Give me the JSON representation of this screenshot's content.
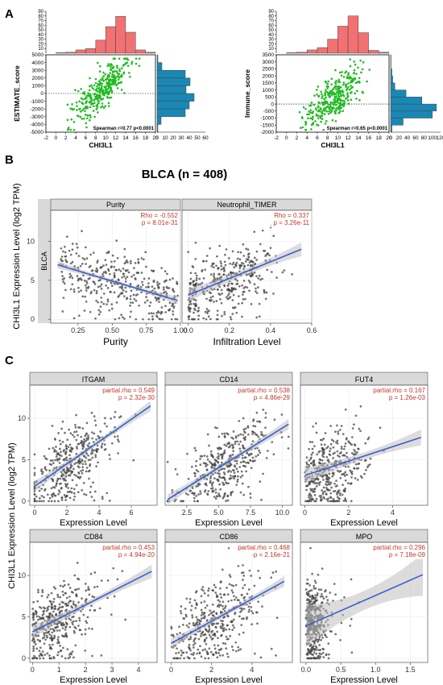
{
  "panel_labels": {
    "a": "A",
    "b": "B",
    "c": "C"
  },
  "colors": {
    "hist_top": "#f27173",
    "hist_side": "#1a87b5",
    "scatter_a": "#22bb22",
    "points": "#444444",
    "fit_line": "#3a5fcd",
    "band": "#bfbfbf",
    "stat_text": "#c0392b",
    "strip_bg": "#d9d9d9",
    "grid": "#ebebeb"
  },
  "panel_b": {
    "title": "BLCA (n = 408)",
    "ylabel": "CHI3L1 Expression Level (log2 TPM)",
    "row_strip": "BLCA"
  },
  "panel_c": {
    "ylabel": "CHI3L1 Expression Level (log2 TPM)"
  },
  "chart_data": [
    {
      "id": "a1",
      "type": "scatter",
      "xlabel": "CHI3L1",
      "ylabel": "ESTIMATE_score",
      "xlim": [
        -2,
        20
      ],
      "ylim": [
        -5000,
        5000
      ],
      "xticks": [
        -2,
        0,
        2,
        4,
        6,
        8,
        10,
        12,
        14,
        16,
        18,
        20
      ],
      "yticks": [
        -5000,
        -4000,
        -3000,
        -2000,
        -1000,
        0,
        1000,
        2000,
        3000,
        4000,
        5000
      ],
      "annotation": "Spearman r=0.77 p<0.0001",
      "hist_x": {
        "bins": [
          0,
          2,
          4,
          6,
          8,
          10,
          12,
          14,
          16,
          18,
          20
        ],
        "counts": [
          1,
          2,
          7,
          10,
          28,
          57,
          79,
          45,
          7,
          2
        ],
        "yticks": [
          10,
          20,
          30,
          40,
          50,
          60,
          70,
          80,
          90
        ]
      },
      "hist_y": {
        "bins": [
          -5000,
          -4000,
          -3000,
          -2000,
          -1000,
          0,
          1000,
          2000,
          3000,
          4000,
          5000
        ],
        "counts": [
          1,
          5,
          35,
          40,
          46,
          36,
          41,
          35,
          6,
          1
        ],
        "xticks": [
          10,
          20,
          30,
          40,
          50,
          60
        ],
        "xlim": [
          0,
          60
        ]
      }
    },
    {
      "id": "a2",
      "type": "scatter",
      "xlabel": "CHI3L1",
      "ylabel": "Immune_score",
      "xlim": [
        -2,
        20
      ],
      "ylim": [
        -2000,
        3500
      ],
      "xticks": [
        -2,
        0,
        2,
        4,
        6,
        8,
        10,
        12,
        14,
        16,
        18,
        20
      ],
      "yticks": [
        -2000,
        -1500,
        -1000,
        -500,
        0,
        500,
        1000,
        1500,
        2000,
        2500,
        3000,
        3500
      ],
      "annotation": "Spearman r=0.65 p<0.0001",
      "hist_x": {
        "bins": [
          0,
          2,
          4,
          6,
          8,
          10,
          12,
          14,
          16,
          18,
          20
        ],
        "counts": [
          1,
          2,
          7,
          12,
          30,
          58,
          80,
          44,
          6,
          2
        ],
        "yticks": [
          10,
          20,
          30,
          40,
          50,
          60,
          70,
          80,
          90
        ]
      },
      "hist_y": {
        "bins": [
          -2000,
          -1500,
          -1000,
          -500,
          0,
          500,
          1000,
          1500,
          2000,
          2500,
          3000,
          3500
        ],
        "counts": [
          3,
          30,
          100,
          110,
          75,
          37,
          10,
          5,
          3,
          1,
          1
        ],
        "xticks": [
          20,
          40,
          60,
          80,
          100,
          120
        ],
        "xlim": [
          0,
          120
        ]
      }
    },
    {
      "id": "b1",
      "type": "scatter",
      "strip": "Purity",
      "xlabel": "Purity",
      "xlim": [
        0.05,
        1.0
      ],
      "ylim": [
        -0.5,
        14
      ],
      "xticks": [
        0.25,
        0.5,
        0.75,
        1.0
      ],
      "xtick_labels": [
        "0.25",
        "0.50",
        "0.75",
        "1.00"
      ],
      "yticks": [
        0,
        5,
        10
      ],
      "yticklabels": [
        "0",
        "5",
        "10"
      ],
      "rho": "Rho = -0.552",
      "p": "p = 8.01e-31",
      "fit": [
        [
          0.1,
          7.0
        ],
        [
          0.98,
          2.4
        ]
      ],
      "band_halfwidth": 0.3
    },
    {
      "id": "b2",
      "type": "scatter",
      "strip": "Neutrophil_TIMER",
      "xlabel": "Infiltration Level",
      "xlim": [
        -0.03,
        0.6
      ],
      "ylim": [
        -0.5,
        14
      ],
      "xticks": [
        0.0,
        0.2,
        0.4,
        0.6
      ],
      "xtick_labels": [
        "0.0",
        "0.2",
        "0.4",
        "0.6"
      ],
      "yticks": [
        0,
        5,
        10
      ],
      "rho": "Rho = 0.337",
      "p": "p = 3.26e-11",
      "fit": [
        [
          0.0,
          3.1
        ],
        [
          0.55,
          9.0
        ]
      ],
      "band_halfwidth": 0.55
    },
    {
      "id": "c1",
      "type": "scatter",
      "strip": "ITGAM",
      "xlabel": "Expression Level",
      "xlim": [
        -0.3,
        7.6
      ],
      "ylim": [
        -0.5,
        14
      ],
      "xticks": [
        0,
        2,
        4,
        6
      ],
      "xtick_labels": [
        "0",
        "2",
        "4",
        "6"
      ],
      "yticks": [
        0,
        5,
        10
      ],
      "yticklabels": [
        "0",
        "5",
        "10"
      ],
      "rho": "partial.rho = 0.549",
      "p": "p = 2.32e-30",
      "fit": [
        [
          0.0,
          1.8
        ],
        [
          7.2,
          11.5
        ]
      ],
      "band_halfwidth": 0.4
    },
    {
      "id": "c2",
      "type": "scatter",
      "strip": "CD14",
      "xlabel": "Expression Level",
      "xlim": [
        0.8,
        10.8
      ],
      "ylim": [
        -0.5,
        14
      ],
      "xticks": [
        2.5,
        5.0,
        7.5,
        10.0
      ],
      "xtick_labels": [
        "2.5",
        "5.0",
        "7.5",
        "10.0"
      ],
      "yticks": [
        0,
        5,
        10
      ],
      "rho": "partial.rho = 0.538",
      "p": "p = 4.86e-29",
      "fit": [
        [
          1.0,
          0.2
        ],
        [
          10.5,
          9.3
        ]
      ],
      "band_halfwidth": 0.4
    },
    {
      "id": "c3",
      "type": "scatter",
      "strip": "FUT4",
      "xlabel": "Expression Level",
      "xlim": [
        -0.2,
        5.6
      ],
      "ylim": [
        -0.5,
        14
      ],
      "xticks": [
        0,
        2,
        4
      ],
      "xtick_labels": [
        "0",
        "2",
        "4"
      ],
      "yticks": [
        0,
        5,
        10
      ],
      "rho": "partial.rho = 0.167",
      "p": "p = 1.26e-03",
      "fit": [
        [
          0.0,
          3.1
        ],
        [
          5.3,
          7.7
        ]
      ],
      "band_halfwidth": 0.6
    },
    {
      "id": "c4",
      "type": "scatter",
      "strip": "CD84",
      "xlabel": "Expression Level",
      "xlim": [
        -0.1,
        4.7
      ],
      "ylim": [
        -0.5,
        14
      ],
      "xticks": [
        0,
        1,
        2,
        3,
        4
      ],
      "xtick_labels": [
        "0",
        "1",
        "2",
        "3",
        "4"
      ],
      "yticks": [
        0,
        5,
        10
      ],
      "yticklabels": [
        "0",
        "5",
        "10"
      ],
      "rho": "partial.rho = 0.453",
      "p": "p = 4.94e-20",
      "fit": [
        [
          0.0,
          3.2
        ],
        [
          4.5,
          10.5
        ]
      ],
      "band_halfwidth": 0.5
    },
    {
      "id": "c5",
      "type": "scatter",
      "strip": "CD86",
      "xlabel": "Expression Level",
      "xlim": [
        -0.3,
        6.0
      ],
      "ylim": [
        -0.5,
        14
      ],
      "xticks": [
        0,
        2,
        4
      ],
      "xtick_labels": [
        "0",
        "2",
        "4"
      ],
      "yticks": [
        0,
        5,
        10
      ],
      "rho": "partial.rho = 0.468",
      "p": "p = 2.16e-21",
      "fit": [
        [
          0.0,
          1.8
        ],
        [
          5.6,
          9.3
        ]
      ],
      "band_halfwidth": 0.4
    },
    {
      "id": "c6",
      "type": "scatter",
      "strip": "MPO",
      "xlabel": "Expression Level",
      "xlim": [
        -0.08,
        1.75
      ],
      "ylim": [
        -0.5,
        14
      ],
      "xticks": [
        0.0,
        0.5,
        1.0,
        1.5
      ],
      "xtick_labels": [
        "0.0",
        "0.5",
        "1.0",
        "1.5"
      ],
      "yticks": [
        0,
        5,
        10
      ],
      "rho": "partial.rho = 0.296",
      "p": "p = 7.18e-09",
      "fit": [
        [
          0.0,
          3.9
        ],
        [
          1.68,
          10.1
        ]
      ],
      "band_halfwidth": 1.6
    }
  ]
}
